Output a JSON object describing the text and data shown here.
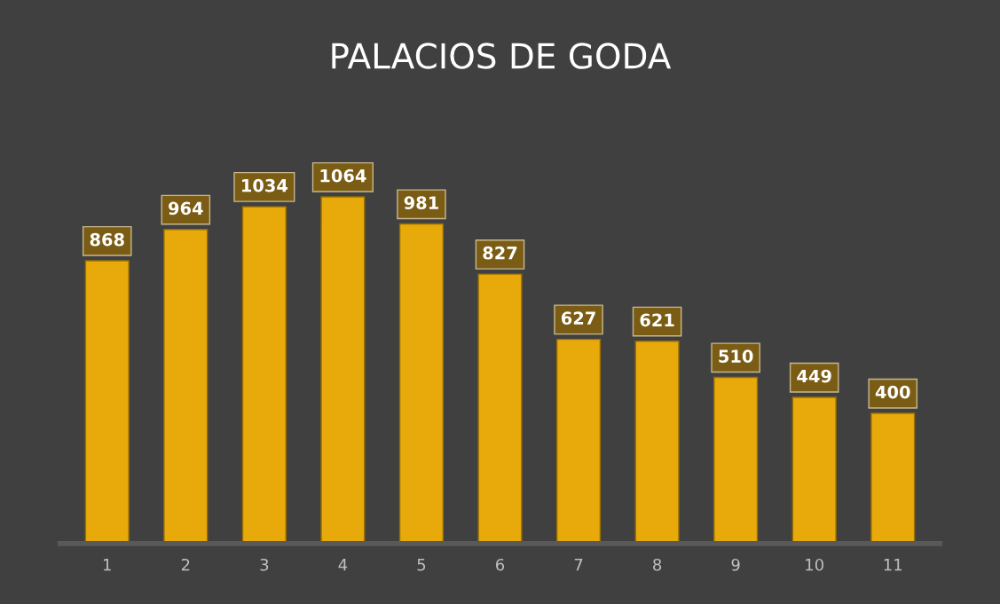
{
  "chart_data": {
    "type": "bar",
    "title": "PALACIOS DE GODA",
    "categories": [
      "1",
      "2",
      "3",
      "4",
      "5",
      "6",
      "7",
      "8",
      "9",
      "10",
      "11"
    ],
    "values": [
      868,
      964,
      1034,
      1064,
      981,
      827,
      627,
      621,
      510,
      449,
      400
    ],
    "color": "#e8a90a",
    "data_labels": true,
    "grid": false,
    "legend": false
  }
}
